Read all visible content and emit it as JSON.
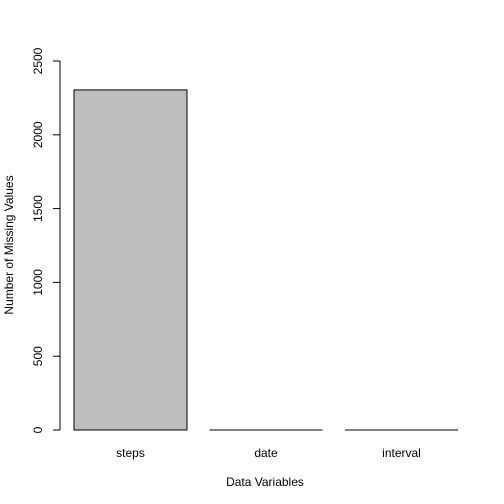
{
  "chart_data": {
    "type": "bar",
    "categories": [
      "steps",
      "date",
      "interval"
    ],
    "values": [
      2304,
      0,
      0
    ],
    "xlabel": "Data Variables",
    "ylabel": "Number of Missing Values",
    "ylim": [
      0,
      2500
    ],
    "yticks": [
      0,
      500,
      1000,
      1500,
      2000,
      2500
    ],
    "grid": false,
    "legend": "none",
    "colors": {
      "bar_fill": "#bebebe",
      "bar_stroke": "#000000",
      "axis": "#000000"
    }
  }
}
